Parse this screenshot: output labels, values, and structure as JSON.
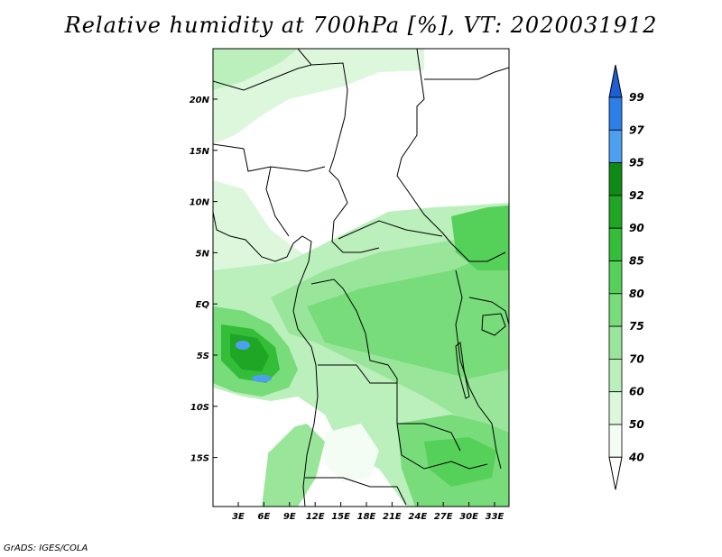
{
  "title": "Relative humidity at 700hPa [%], VT: 2020031912",
  "footer": "GrADS: IGES/COLA",
  "map": {
    "lon_labels": [
      "3E",
      "6E",
      "9E",
      "12E",
      "15E",
      "18E",
      "21E",
      "24E",
      "27E",
      "30E",
      "33E"
    ],
    "lat_labels": [
      "20N",
      "15N",
      "10N",
      "5N",
      "EQ",
      "5S",
      "10S",
      "15S"
    ]
  },
  "colorbar": {
    "levels": [
      "99",
      "97",
      "95",
      "92",
      "90",
      "85",
      "80",
      "75",
      "70",
      "60",
      "50",
      "40"
    ],
    "colors": [
      "#1e5fd4",
      "#2c7ee8",
      "#4da0f0",
      "#0f8a16",
      "#1fa624",
      "#33bd38",
      "#55d059",
      "#77dc79",
      "#99e69a",
      "#bbefbc",
      "#dcf7dc",
      "#f3fdf3",
      "#ffffff"
    ]
  }
}
